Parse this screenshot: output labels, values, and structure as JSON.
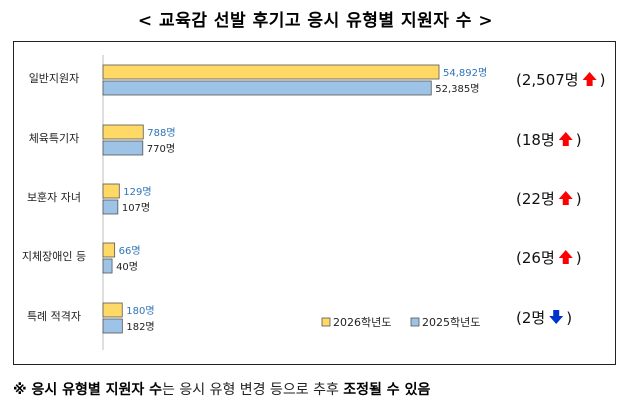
{
  "title": "< 교육감 선발 후기고 응시 유형별 지원자 수 >",
  "note": {
    "prefix": "※ ",
    "bold1": "응시 유형별 지원자 수",
    "normal": "는 응시 유형 변경 등으로 추후 ",
    "bold2": "조정될 수 있음"
  },
  "chart_data": {
    "type": "bar",
    "orientation": "horizontal",
    "categories": [
      "일반지원자",
      "체육특기자",
      "보훈자 자녀",
      "지체장애인 등",
      "특례 적격자"
    ],
    "series": [
      {
        "name": "2026학년도",
        "color": "#FFD966",
        "values": [
          54892,
          788,
          129,
          66,
          180
        ],
        "labels": [
          "54,892명",
          "788명",
          "129명",
          "66명",
          "180명"
        ],
        "label_color": "#2E75B6"
      },
      {
        "name": "2025학년도",
        "color": "#9DC3E6",
        "values": [
          52385,
          770,
          107,
          40,
          182
        ],
        "labels": [
          "52,385명",
          "770명",
          "107명",
          "40명",
          "182명"
        ],
        "label_color": "#222222"
      }
    ],
    "changes": [
      {
        "text": "(2,507명",
        "dir": "up"
      },
      {
        "text": "(18명",
        "dir": "up"
      },
      {
        "text": "(22명",
        "dir": "up"
      },
      {
        "text": "(26명",
        "dir": "up"
      },
      {
        "text": "(2명",
        "dir": "down"
      }
    ],
    "change_close": ")",
    "change_colors": {
      "up": "#FF0000",
      "down": "#0033CC"
    },
    "legend_position": "bottom-right",
    "grid": false,
    "scale": "non-linear (display bars not proportional)"
  }
}
